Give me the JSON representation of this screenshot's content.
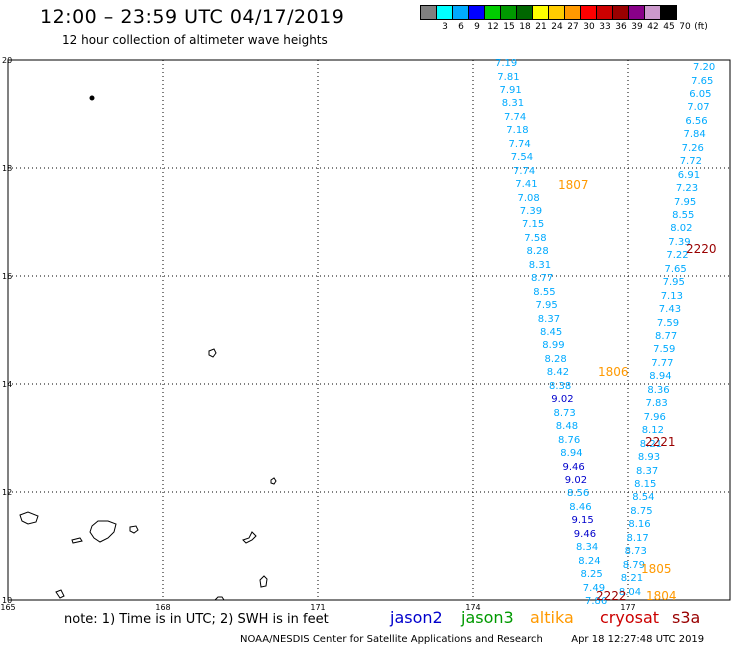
{
  "header": {
    "title": "12:00 – 23:59 UTC 04/17/2019",
    "subtitle": "12 hour collection of altimeter wave heights"
  },
  "scale": {
    "colors": [
      "#808080",
      "#00ffff",
      "#00aaff",
      "#0000ff",
      "#00cc00",
      "#009900",
      "#006600",
      "#ffff00",
      "#ffcc00",
      "#ff9900",
      "#ff0000",
      "#cc0000",
      "#990000",
      "#880088",
      "#cc99cc",
      "#000000"
    ],
    "labels": [
      "3",
      "6",
      "9",
      "12",
      "15",
      "18",
      "21",
      "24",
      "27",
      "30",
      "33",
      "36",
      "39",
      "42",
      "45",
      "70",
      "(ft)"
    ]
  },
  "map": {
    "lat_labels": [
      "20",
      "18",
      "16",
      "14",
      "12",
      "10"
    ],
    "lon_labels": [
      "165",
      "168",
      "171",
      "174",
      "177"
    ],
    "lon_range": [
      165,
      180
    ],
    "lat_range": [
      10,
      20
    ],
    "wave_color": "#00aaff",
    "dark_wave_color": "#0000cc",
    "track_a": [
      "7.19",
      "7.81",
      "7.91",
      "8.31",
      "7.74",
      "7.18",
      "7.74",
      "7.54",
      "7.74",
      "7.41",
      "7.08",
      "7.39",
      "7.15",
      "7.58",
      "8.28",
      "8.31",
      "8.77",
      "8.55",
      "7.95",
      "8.37",
      "8.45",
      "8.99",
      "8.28",
      "8.42",
      "8.38",
      "9.02",
      "8.73",
      "8.48",
      "8.76",
      "8.94",
      "9.46",
      "9.02",
      "8.56",
      "8.46",
      "9.15",
      "9.46",
      "8.34",
      "8.24",
      "8.25",
      "7.49",
      "7.86"
    ],
    "track_b": [
      "7.20",
      "7.65",
      "6.05",
      "7.07",
      "6.56",
      "7.84",
      "7.26",
      "7.72",
      "6.91",
      "7.23",
      "7.95",
      "8.55",
      "8.02",
      "7.39",
      "7.22",
      "7.65",
      "7.95",
      "7.13",
      "7.43",
      "7.59",
      "8.77",
      "7.59",
      "7.77",
      "8.94",
      "8.36",
      "7.83",
      "7.96",
      "8.12",
      "8.21",
      "8.93",
      "8.37",
      "8.15",
      "8.54",
      "8.75",
      "8.16",
      "8.17",
      "8.73",
      "8.79",
      "8.21",
      "8.04"
    ],
    "dark_values": [
      "9.02",
      "9.46",
      "9.02",
      "9.15",
      "9.46"
    ],
    "pass_times": [
      {
        "time": "1807",
        "color": "#ff9900"
      },
      {
        "time": "2220",
        "color": "#990000"
      },
      {
        "time": "1806",
        "color": "#ff9900"
      },
      {
        "time": "2221",
        "color": "#990000"
      },
      {
        "time": "1805",
        "color": "#ff9900"
      },
      {
        "time": "2222",
        "color": "#990000"
      },
      {
        "time": "1804",
        "color": "#ff9900"
      }
    ]
  },
  "footer": {
    "note": "note: 1) Time is in UTC; 2) SWH is in feet",
    "satellites": [
      {
        "name": "jason2",
        "color": "#0000cc"
      },
      {
        "name": "jason3",
        "color": "#009900"
      },
      {
        "name": "altika",
        "color": "#ff9900"
      },
      {
        "name": "cryosat",
        "color": "#cc0000"
      },
      {
        "name": "s3a",
        "color": "#990000"
      }
    ],
    "credit": "NOAA/NESDIS Center for Satellite Applications and Research",
    "timestamp": "Apr 18 12:27:48 UTC 2019"
  }
}
